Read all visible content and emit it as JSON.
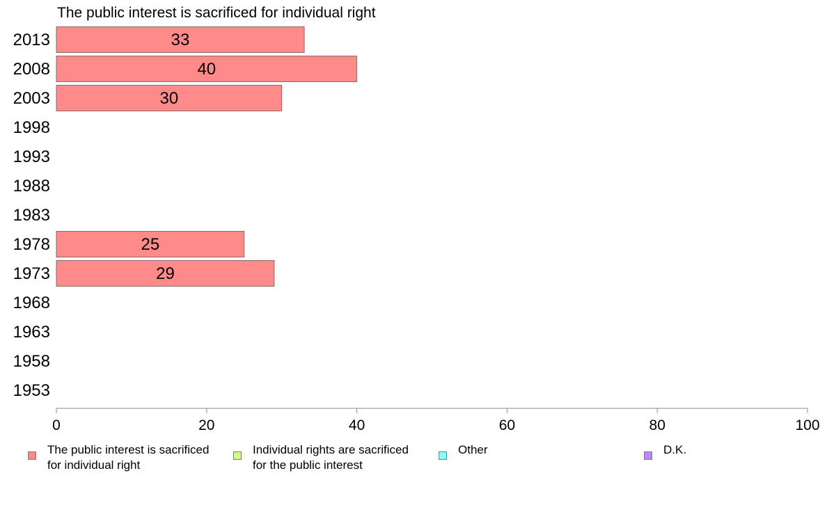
{
  "chart_data": {
    "type": "bar",
    "orientation": "horizontal",
    "title": "The public interest is sacrificed for individual right",
    "categories": [
      "2013",
      "2008",
      "2003",
      "1998",
      "1993",
      "1988",
      "1983",
      "1978",
      "1973",
      "1968",
      "1963",
      "1958",
      "1953"
    ],
    "series": [
      {
        "name": "The public interest is sacrificed for individual right",
        "color": "#ff8a8a",
        "values": [
          33,
          40,
          30,
          null,
          null,
          null,
          null,
          25,
          29,
          null,
          null,
          null,
          null
        ],
        "labels": [
          "33",
          "40",
          "30",
          "",
          "",
          "",
          "",
          "25",
          "29",
          "",
          "",
          "",
          ""
        ]
      }
    ],
    "xlim": [
      0,
      100
    ],
    "xticks": [
      "0",
      "20",
      "40",
      "60",
      "80",
      "100"
    ],
    "xlabel": "",
    "ylabel": "",
    "grid": false,
    "legend_position": "bottom"
  },
  "legend": [
    {
      "label": "The public interest is sacrificed\nfor individual right",
      "color": "#ff8a8a"
    },
    {
      "label": "Individual rights are sacrificed\nfor the public interest",
      "color": "#ccff88"
    },
    {
      "label": "Other",
      "color": "#88ffff"
    },
    {
      "label": "D.K.",
      "color": "#bb88ff"
    }
  ]
}
